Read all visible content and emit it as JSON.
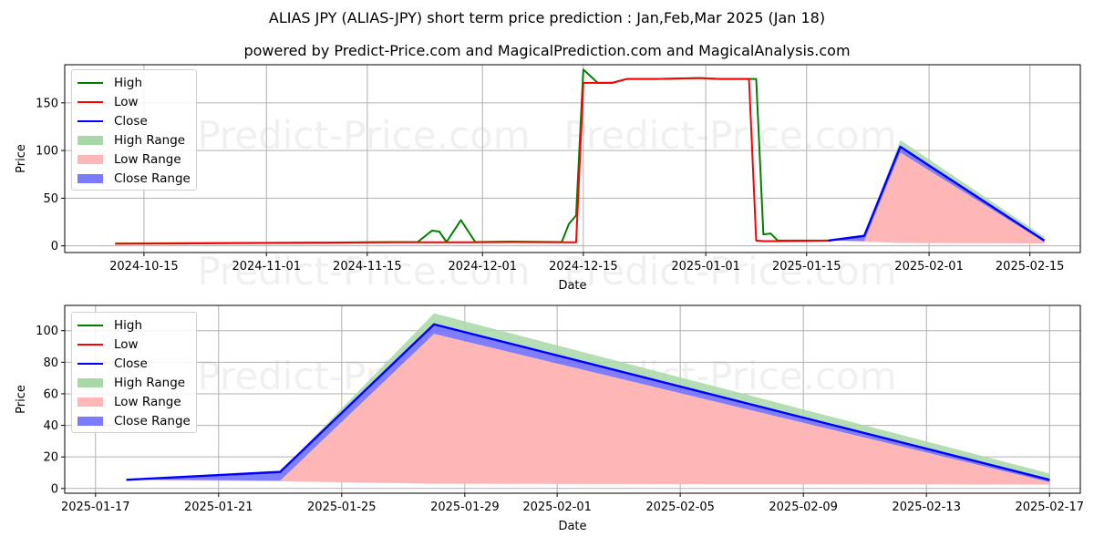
{
  "title": "ALIAS JPY (ALIAS-JPY) short term price prediction : Jan,Feb,Mar 2025 (Jan 18)",
  "subtitle": "powered by Predict-Price.com and MagicalPrediction.com and MagicalAnalysis.com",
  "watermark": "Predict-Price.com",
  "colors": {
    "high": "#008000",
    "low": "#ff0000",
    "close": "#0000ff",
    "high_range": "#a8d8a8",
    "low_range": "#ffb6b6",
    "close_range": "#7070ff"
  },
  "legend": [
    "High",
    "Low",
    "Close",
    "High Range",
    "Low Range",
    "Close Range"
  ],
  "chart_data": [
    {
      "type": "line",
      "title": "",
      "xlabel": "Date",
      "ylabel": "Price",
      "ylim": [
        -7,
        190
      ],
      "xlim": [
        "2024-10-04",
        "2025-02-22"
      ],
      "grid": true,
      "legend_position": "upper left",
      "x_ticks": [
        "2024-10-15",
        "2024-11-01",
        "2024-11-15",
        "2024-12-01",
        "2024-12-15",
        "2025-01-01",
        "2025-01-15",
        "2025-02-01",
        "2025-02-15"
      ],
      "y_ticks": [
        0,
        50,
        100,
        150
      ],
      "history": {
        "dates": [
          "2024-10-11",
          "2024-10-20",
          "2024-11-01",
          "2024-11-10",
          "2024-11-15",
          "2024-11-19",
          "2024-11-22",
          "2024-11-24",
          "2024-11-25",
          "2024-11-26",
          "2024-11-28",
          "2024-11-30",
          "2024-12-05",
          "2024-12-12",
          "2024-12-13",
          "2024-12-14",
          "2024-12-15",
          "2024-12-17",
          "2024-12-19",
          "2024-12-21",
          "2024-12-25",
          "2024-12-31",
          "2025-01-03",
          "2025-01-07",
          "2025-01-08",
          "2025-01-09",
          "2025-01-10",
          "2025-01-11",
          "2025-01-15",
          "2025-01-18"
        ],
        "high": [
          2.5,
          2.8,
          3.2,
          3.5,
          3.8,
          4,
          4,
          16,
          15,
          4,
          27,
          4,
          4.5,
          4,
          23,
          32,
          185,
          171,
          171,
          175,
          175,
          176,
          175,
          175,
          175,
          12,
          13,
          5.5,
          5.5,
          5.5
        ],
        "low": [
          2.2,
          2.5,
          3,
          3.3,
          3.6,
          3.8,
          3.8,
          3.8,
          3.8,
          3.8,
          3.8,
          3.8,
          4,
          3.8,
          3.8,
          3.8,
          171,
          171,
          171,
          175,
          175,
          176,
          175,
          175,
          5.5,
          5,
          5,
          5,
          5.2,
          5.5
        ]
      },
      "forecast": {
        "dates": [
          "2025-01-18",
          "2025-01-23",
          "2025-01-28",
          "2025-02-17"
        ],
        "close": [
          5.5,
          10.5,
          104,
          5.5
        ],
        "high": [
          5.5,
          10.5,
          111,
          9.5
        ],
        "low": [
          5.5,
          5,
          98,
          4
        ],
        "low_range_bottom": [
          5.5,
          4.5,
          3,
          2.5
        ]
      }
    },
    {
      "type": "line",
      "title": "",
      "xlabel": "Date",
      "ylabel": "Price",
      "ylim": [
        -3,
        116
      ],
      "xlim": [
        "2025-01-16",
        "2025-02-18"
      ],
      "grid": true,
      "legend_position": "upper left",
      "x_ticks": [
        "2025-01-17",
        "2025-01-21",
        "2025-01-25",
        "2025-01-29",
        "2025-02-01",
        "2025-02-05",
        "2025-02-09",
        "2025-02-13",
        "2025-02-17"
      ],
      "y_ticks": [
        0,
        20,
        40,
        60,
        80,
        100
      ],
      "forecast": {
        "dates": [
          "2025-01-18",
          "2025-01-23",
          "2025-01-28",
          "2025-02-17"
        ],
        "close": [
          5.5,
          10.5,
          104,
          5.5
        ],
        "high": [
          5.5,
          10.5,
          111,
          9.5
        ],
        "close_range_low": [
          5.5,
          5,
          98,
          4
        ],
        "low_range_bottom": [
          5.5,
          4.5,
          3,
          2.5
        ]
      }
    }
  ]
}
